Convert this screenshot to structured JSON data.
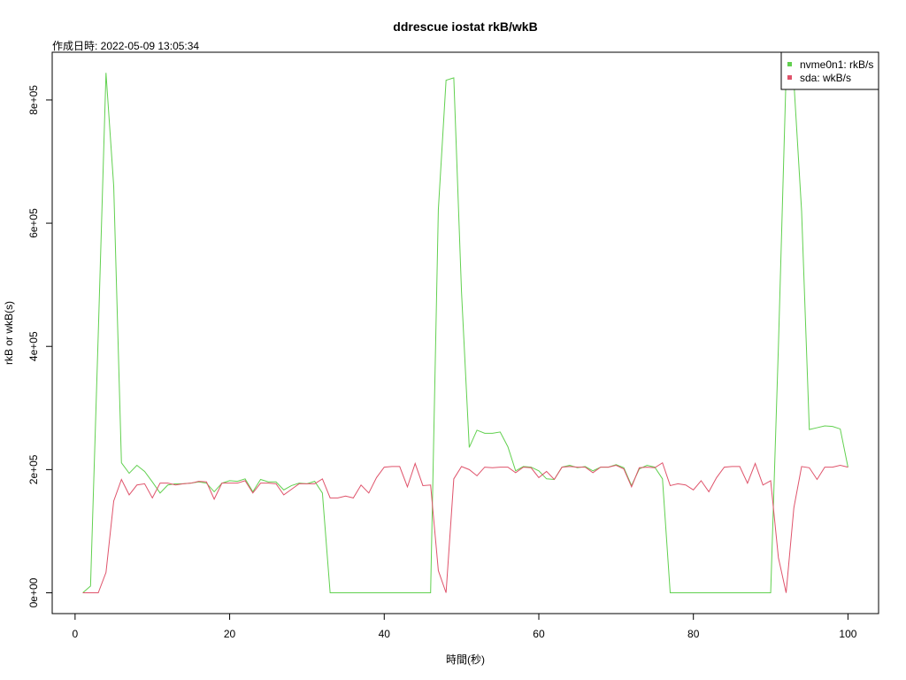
{
  "chart_data": {
    "type": "line",
    "title": "ddrescue iostat rkB/wkB",
    "subtitle": "作成日時: 2022-05-09 13:05:34",
    "x_label": "時間(秒)",
    "y_label": "rkB or wkB(s)",
    "x": [
      1,
      2,
      3,
      4,
      5,
      6,
      7,
      8,
      9,
      10,
      11,
      12,
      13,
      14,
      15,
      16,
      17,
      18,
      19,
      20,
      21,
      22,
      23,
      24,
      25,
      26,
      27,
      28,
      29,
      30,
      31,
      32,
      33,
      34,
      35,
      36,
      37,
      38,
      39,
      40,
      41,
      42,
      43,
      44,
      45,
      46,
      47,
      48,
      49,
      50,
      51,
      52,
      53,
      54,
      55,
      56,
      57,
      58,
      59,
      60,
      61,
      62,
      63,
      64,
      65,
      66,
      67,
      68,
      69,
      70,
      71,
      72,
      73,
      74,
      75,
      76,
      77,
      78,
      79,
      80,
      81,
      82,
      83,
      84,
      85,
      86,
      87,
      88,
      89,
      90,
      91,
      92,
      93,
      94,
      95,
      96,
      97,
      98,
      99,
      100
    ],
    "series": [
      {
        "name": "nvme0n1: rkB/s",
        "color": "#61D04F",
        "values": [
          0,
          11000,
          420000,
          844000,
          660000,
          211000,
          194000,
          207000,
          197000,
          180000,
          162000,
          175000,
          177000,
          177000,
          178000,
          180000,
          178000,
          164000,
          178000,
          182000,
          181000,
          185000,
          164000,
          184000,
          180000,
          180000,
          167000,
          174000,
          178000,
          177000,
          181000,
          162000,
          0,
          0,
          0,
          0,
          0,
          0,
          0,
          0,
          0,
          0,
          0,
          0,
          0,
          0,
          622000,
          832000,
          836000,
          488000,
          236000,
          264000,
          259000,
          259000,
          261000,
          237000,
          198000,
          205000,
          204000,
          198000,
          185000,
          184000,
          204000,
          207000,
          203000,
          205000,
          198000,
          204000,
          204000,
          208000,
          203000,
          174000,
          201000,
          207000,
          204000,
          185000,
          0,
          0,
          0,
          0,
          0,
          0,
          0,
          0,
          0,
          0,
          0,
          0,
          0,
          0,
          400000,
          843000,
          830000,
          620000,
          265000,
          268000,
          271000,
          270000,
          266000,
          204000
        ]
      },
      {
        "name": "sda: wkB/s",
        "color": "#DF536B",
        "values": [
          0,
          0,
          0,
          33000,
          149000,
          184000,
          159000,
          175000,
          177000,
          154000,
          178000,
          178000,
          175000,
          177000,
          178000,
          181000,
          180000,
          152000,
          178000,
          178000,
          178000,
          182000,
          162000,
          178000,
          178000,
          177000,
          159000,
          168000,
          177000,
          177000,
          177000,
          185000,
          154000,
          154000,
          157000,
          154000,
          175000,
          162000,
          187000,
          204000,
          205000,
          205000,
          172000,
          210000,
          174000,
          175000,
          36000,
          0,
          185000,
          205000,
          200000,
          190000,
          204000,
          203000,
          204000,
          204000,
          195000,
          204000,
          203000,
          187000,
          197000,
          184000,
          204000,
          205000,
          204000,
          204000,
          195000,
          204000,
          204000,
          207000,
          201000,
          172000,
          203000,
          204000,
          203000,
          211000,
          174000,
          177000,
          175000,
          167000,
          182000,
          164000,
          187000,
          204000,
          205000,
          205000,
          178000,
          210000,
          175000,
          182000,
          57000,
          0,
          138000,
          205000,
          203000,
          184000,
          204000,
          204000,
          207000,
          204000
        ]
      }
    ],
    "xlim": [
      -2.96,
      103.96
    ],
    "xticks": [
      0,
      20,
      40,
      60,
      80,
      100
    ],
    "ylim": [
      -33750,
      877500
    ],
    "yticks": [
      {
        "value": 0,
        "label": "0e+00"
      },
      {
        "value": 200000,
        "label": "2e+05"
      },
      {
        "value": 400000,
        "label": "4e+05"
      },
      {
        "value": 600000,
        "label": "6e+05"
      },
      {
        "value": 800000,
        "label": "8e+05"
      }
    ],
    "legend": "topright"
  }
}
